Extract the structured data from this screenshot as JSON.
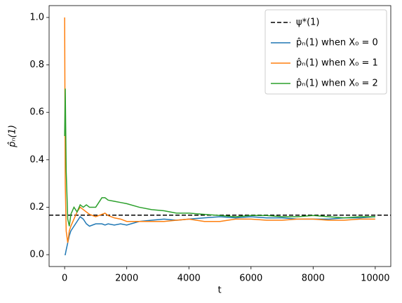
{
  "chart_data": {
    "type": "line",
    "xlabel": "t",
    "ylabel": "p̂ₙ(1)",
    "x": [
      0,
      20,
      50,
      100,
      150,
      200,
      300,
      400,
      500,
      600,
      700,
      800,
      1000,
      1200,
      1300,
      1400,
      1600,
      1800,
      2000,
      2400,
      2800,
      3200,
      3600,
      4000,
      4500,
      5000,
      5500,
      6000,
      6500,
      7000,
      7500,
      8000,
      8500,
      9000,
      9500,
      10000
    ],
    "hline": {
      "name": "ψ*(1)",
      "value": 0.1667,
      "color": "#000000"
    },
    "series": [
      {
        "name": "p̂ₙ(1) when X₀ = 0",
        "color": "#1f77b4",
        "values": [
          0,
          0,
          0.02,
          0.05,
          0.08,
          0.1,
          0.12,
          0.14,
          0.16,
          0.15,
          0.13,
          0.12,
          0.13,
          0.13,
          0.125,
          0.13,
          0.125,
          0.13,
          0.125,
          0.14,
          0.145,
          0.15,
          0.145,
          0.15,
          0.155,
          0.16,
          0.155,
          0.16,
          0.155,
          0.155,
          0.15,
          0.15,
          0.15,
          0.155,
          0.155,
          0.16
        ]
      },
      {
        "name": "p̂ₙ(1) when X₀ = 1",
        "color": "#ff7f0e",
        "values": [
          1.0,
          0.3,
          0.1,
          0.05,
          0.1,
          0.12,
          0.15,
          0.18,
          0.2,
          0.19,
          0.18,
          0.17,
          0.16,
          0.17,
          0.175,
          0.165,
          0.155,
          0.15,
          0.14,
          0.14,
          0.14,
          0.14,
          0.145,
          0.15,
          0.14,
          0.14,
          0.15,
          0.15,
          0.145,
          0.145,
          0.15,
          0.15,
          0.145,
          0.145,
          0.15,
          0.15
        ]
      },
      {
        "name": "p̂ₙ(1) when X₀ = 2",
        "color": "#2ca02c",
        "values": [
          0.5,
          0.7,
          0.35,
          0.15,
          0.12,
          0.17,
          0.2,
          0.18,
          0.21,
          0.2,
          0.21,
          0.2,
          0.2,
          0.24,
          0.24,
          0.23,
          0.225,
          0.22,
          0.215,
          0.2,
          0.19,
          0.185,
          0.175,
          0.175,
          0.17,
          0.165,
          0.16,
          0.165,
          0.165,
          0.16,
          0.16,
          0.165,
          0.16,
          0.155,
          0.16,
          0.16
        ]
      }
    ],
    "xlim": [
      -500,
      10500
    ],
    "ylim": [
      -0.05,
      1.05
    ],
    "xticks": [
      0,
      2000,
      4000,
      6000,
      8000,
      10000
    ],
    "yticks": [
      {
        "value": 0,
        "label": "0.0"
      },
      0.2,
      0.4,
      0.6,
      0.8,
      {
        "value": 1,
        "label": "1.0"
      }
    ],
    "grid": false,
    "legend": "upper right"
  }
}
